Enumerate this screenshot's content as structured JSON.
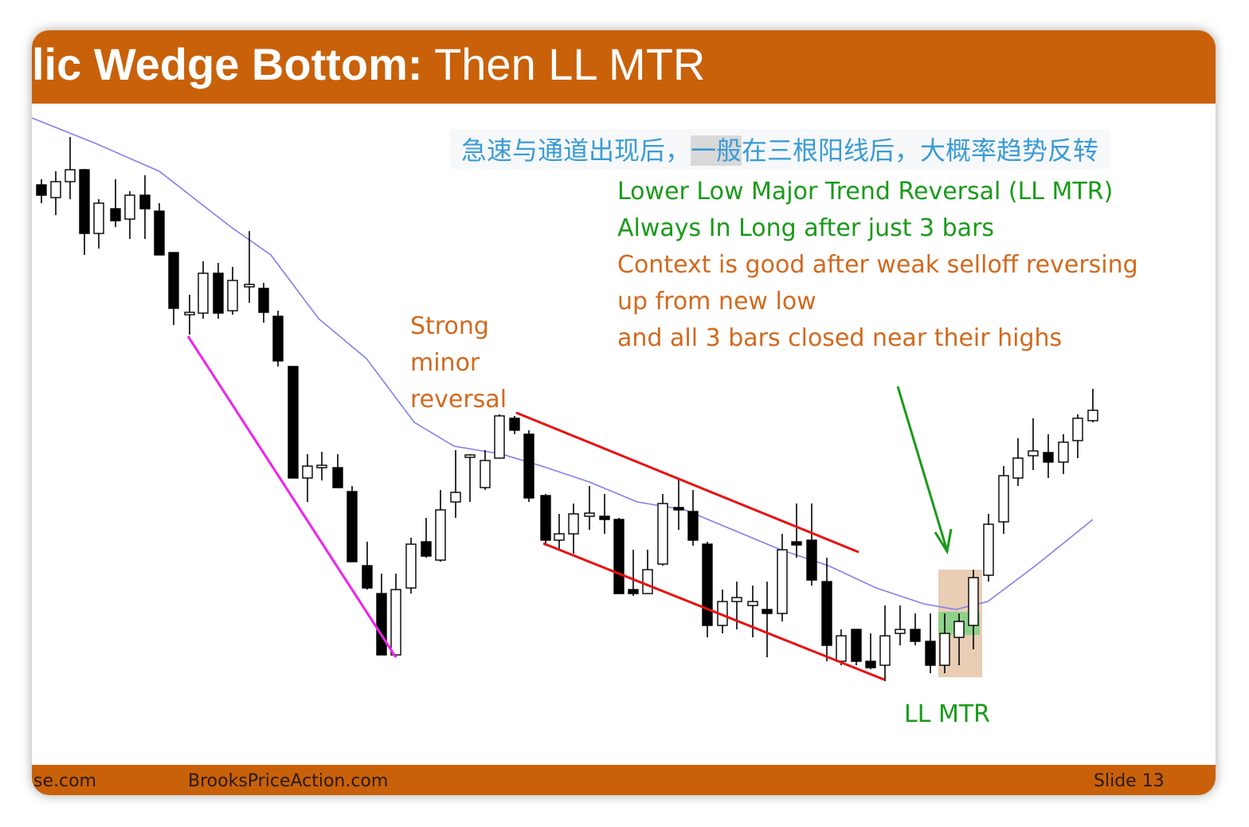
{
  "header": {
    "title_bold": "lic Wedge Bottom:",
    "title_rest": " Then LL MTR"
  },
  "note_cn": [
    "急速与通道出现后，",
    "一般",
    "在三根阳线后，大概率趋势反转"
  ],
  "green_notes": [
    "Lower Low Major Trend Reversal (LL MTR)",
    "Always In Long after just 3 bars"
  ],
  "orange_notes": [
    "Context is good after weak selloff reversing",
    "up from new low",
    "and all 3 bars closed near their highs"
  ],
  "strong_label": [
    "Strong",
    "minor",
    "reversal"
  ],
  "ll_label": "LL MTR",
  "footer": {
    "left": "se.com",
    "center": "BrooksPriceAction.com",
    "right": "Slide  13"
  }
}
